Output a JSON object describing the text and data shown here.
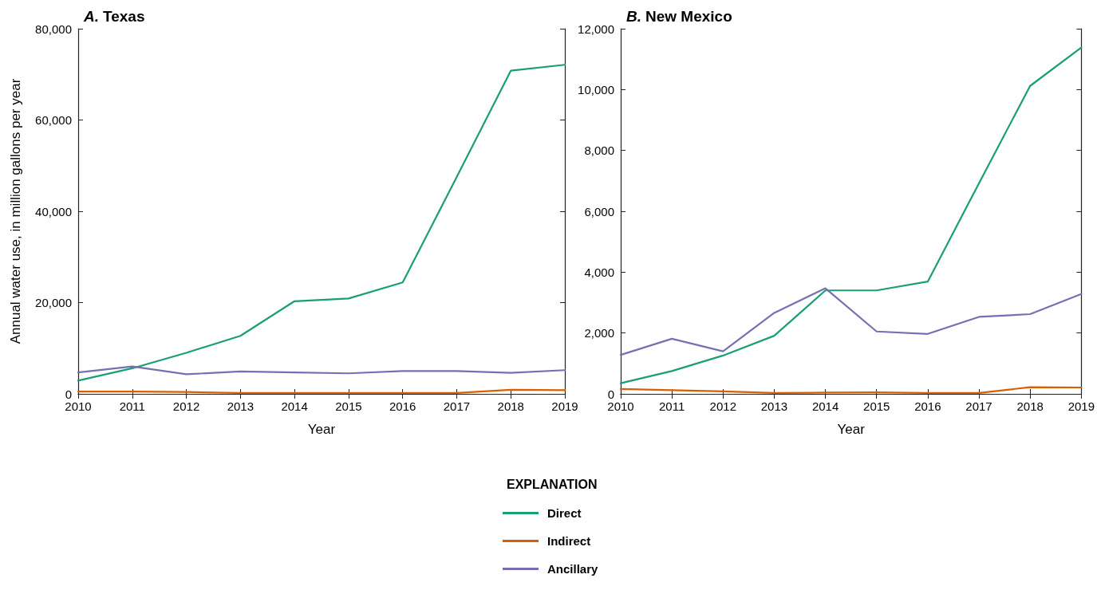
{
  "chart_data": [
    {
      "type": "line",
      "title": "A. Texas",
      "xlabel": "Year",
      "ylabel": "Annual water use, in million gallons per year",
      "legend_title": "EXPLANATION",
      "legend": "bottom",
      "marker": "none",
      "line_style": "solid",
      "grid": false,
      "x": [
        2010,
        2011,
        2012,
        2013,
        2014,
        2015,
        2016,
        2017,
        2018,
        2019
      ],
      "xlim": [
        2010,
        2019
      ],
      "xticks": [
        2010,
        2011,
        2012,
        2013,
        2014,
        2015,
        2016,
        2017,
        2018,
        2019
      ],
      "ylim": [
        0,
        80000
      ],
      "yticks": [
        {
          "value": 0,
          "label": "0"
        },
        {
          "value": 20000,
          "label": "20,000"
        },
        {
          "value": 40000,
          "label": "40,000"
        },
        {
          "value": 60000,
          "label": "60,000"
        },
        {
          "value": 80000,
          "label": "80,000"
        }
      ],
      "series": [
        {
          "name": "Direct",
          "color": "#1b9e77",
          "values": [
            2900,
            5600,
            9000,
            12700,
            20300,
            20900,
            24400,
            47500,
            70800,
            72100
          ]
        },
        {
          "name": "Indirect",
          "color": "#d95f02",
          "values": [
            500,
            500,
            400,
            200,
            200,
            200,
            200,
            200,
            900,
            800
          ]
        },
        {
          "name": "Ancillary",
          "color": "#7570b3",
          "values": [
            4700,
            6000,
            4300,
            4900,
            4700,
            4500,
            5000,
            5000,
            4600,
            5200
          ]
        }
      ]
    },
    {
      "type": "line",
      "title": "B. New Mexico",
      "xlabel": "Year",
      "marker": "none",
      "line_style": "solid",
      "grid": false,
      "x": [
        2010,
        2011,
        2012,
        2013,
        2014,
        2015,
        2016,
        2017,
        2018,
        2019
      ],
      "xlim": [
        2010,
        2019
      ],
      "xticks": [
        2010,
        2011,
        2012,
        2013,
        2014,
        2015,
        2016,
        2017,
        2018,
        2019
      ],
      "ylim": [
        0,
        12000
      ],
      "yticks": [
        {
          "value": 0,
          "label": "0"
        },
        {
          "value": 2000,
          "label": "2,000"
        },
        {
          "value": 4000,
          "label": "4,000"
        },
        {
          "value": 6000,
          "label": "6,000"
        },
        {
          "value": 8000,
          "label": "8,000"
        },
        {
          "value": 10000,
          "label": "10,000"
        },
        {
          "value": 12000,
          "label": "12,000"
        }
      ],
      "series": [
        {
          "color": "#1b9e77",
          "values": [
            350,
            750,
            1260,
            1910,
            3400,
            3400,
            3690,
            6920,
            10120,
            11380
          ]
        },
        {
          "color": "#d95f02",
          "values": [
            160,
            120,
            80,
            30,
            40,
            50,
            30,
            30,
            220,
            210
          ]
        },
        {
          "color": "#7570b3",
          "values": [
            1280,
            1810,
            1400,
            2660,
            3470,
            2050,
            1970,
            2530,
            2620,
            3280
          ]
        }
      ]
    }
  ]
}
